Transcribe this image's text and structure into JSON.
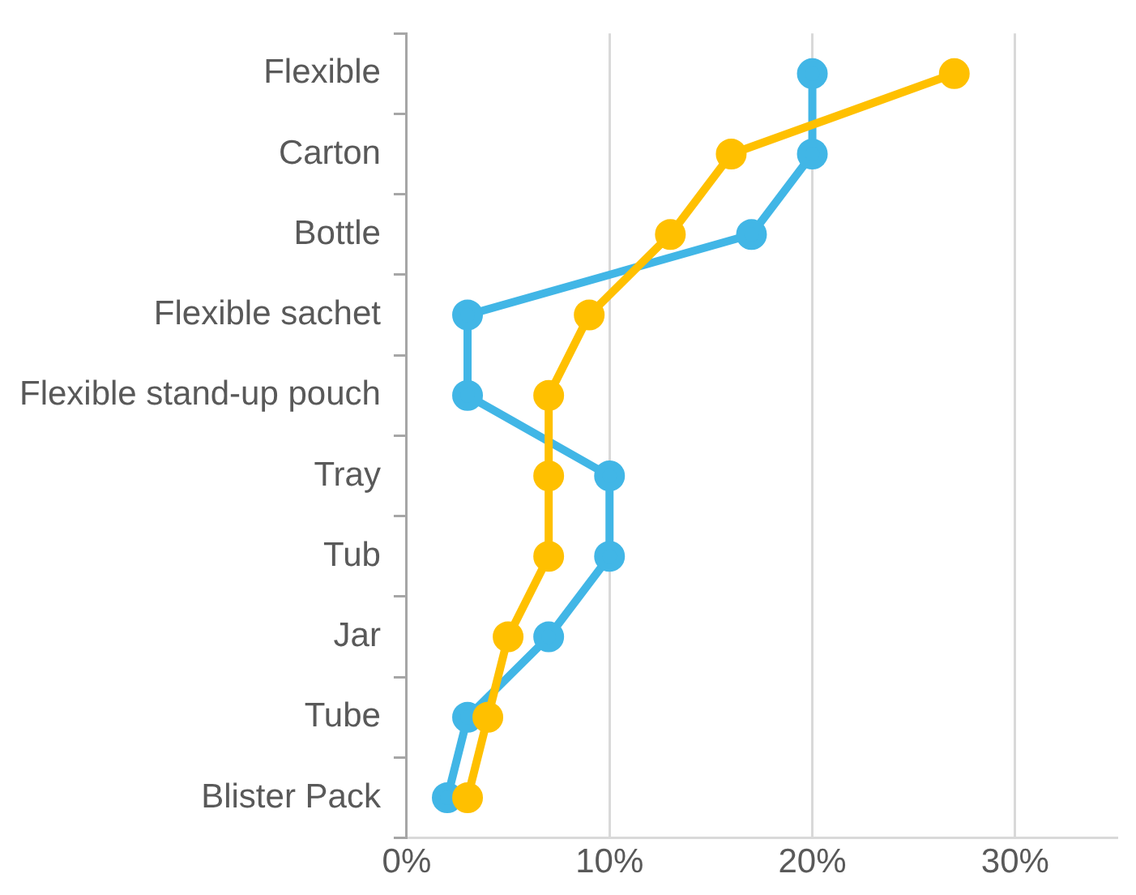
{
  "chart_data": {
    "type": "line",
    "orientation": "horizontal",
    "categories": [
      "Flexible",
      "Carton",
      "Bottle",
      "Flexible sachet",
      "Flexible stand-up pouch",
      "Tray",
      "Tub",
      "Jar",
      "Tube",
      "Blister Pack"
    ],
    "series": [
      {
        "color": "#ffc000",
        "values": [
          27,
          16,
          13,
          9,
          7,
          7,
          7,
          5,
          4,
          3
        ]
      },
      {
        "color": "#41b6e6",
        "values": [
          20,
          20,
          17,
          3,
          3,
          10,
          10,
          7,
          3,
          2
        ]
      }
    ],
    "xlim": [
      0,
      35
    ],
    "xticks": [
      {
        "value": 0,
        "label": "0%"
      },
      {
        "value": 10,
        "label": "10%"
      },
      {
        "value": 20,
        "label": "20%"
      },
      {
        "value": 30,
        "label": "30%"
      }
    ],
    "grid": "x",
    "marker": "circle",
    "line_style": "solid",
    "legend": false
  }
}
